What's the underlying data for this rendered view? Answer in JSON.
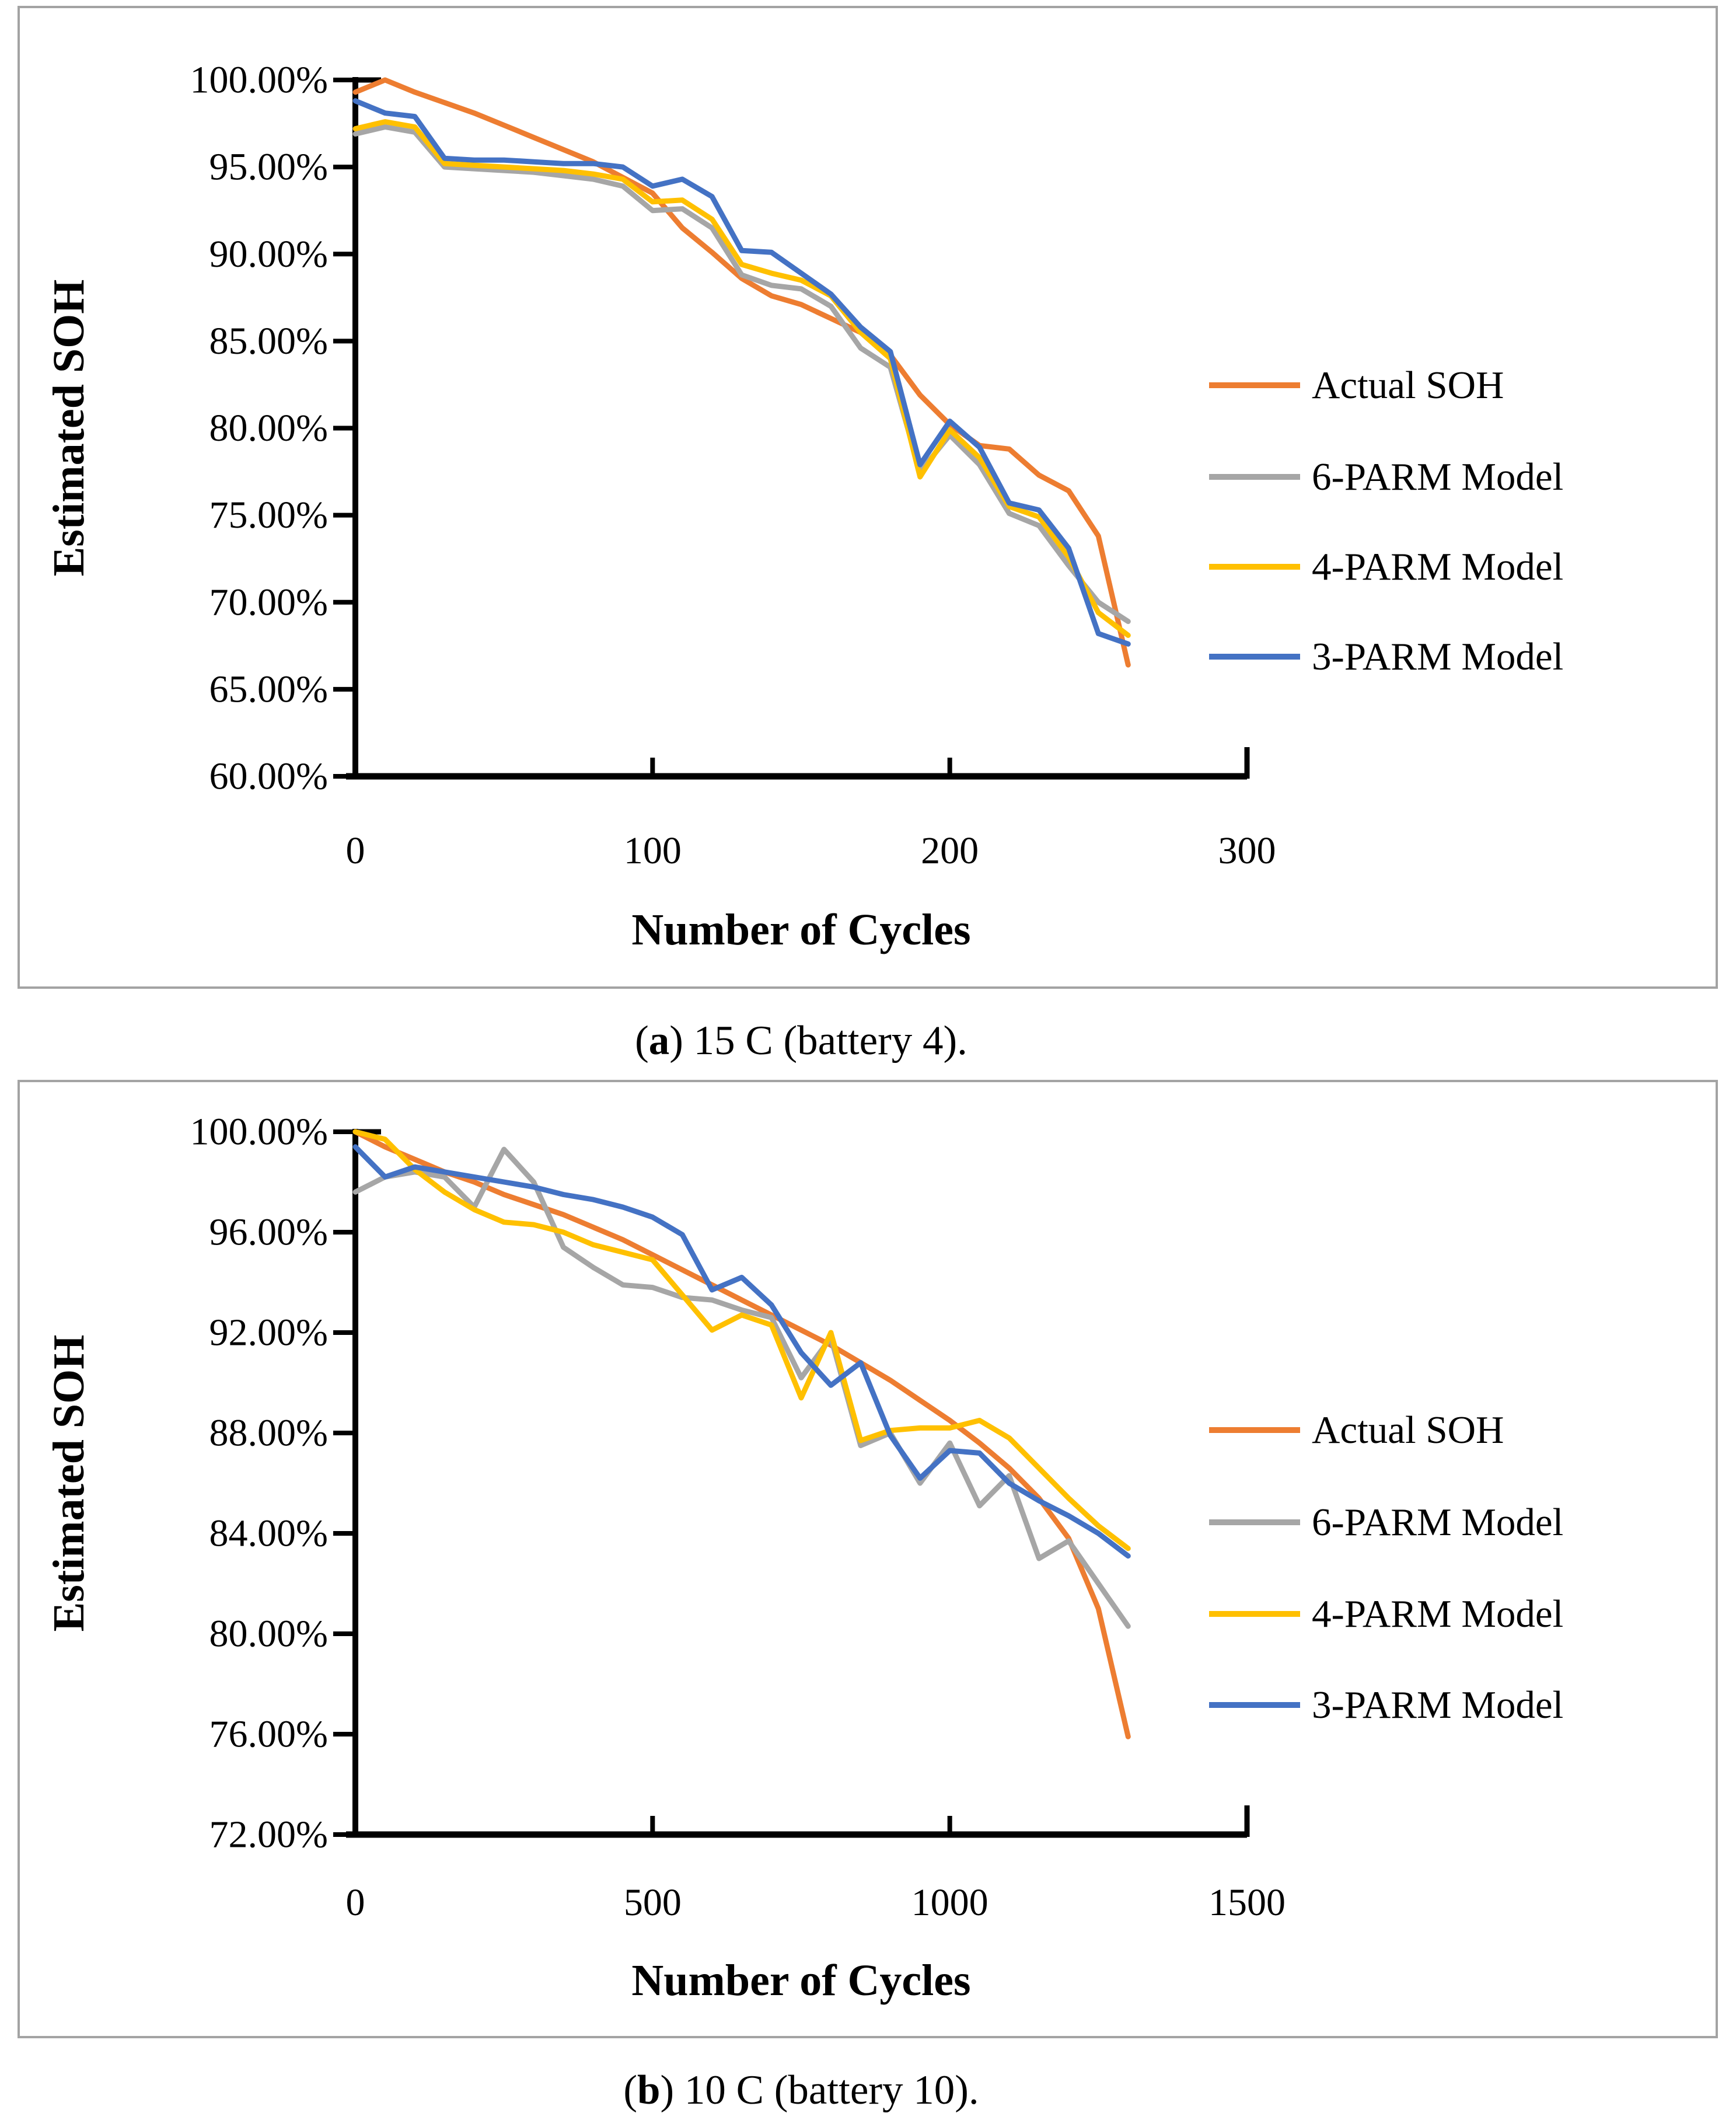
{
  "figure": {
    "background": "#ffffff",
    "border_color": "#a3a3a3"
  },
  "chart_data": [
    {
      "type": "line",
      "panel": "a",
      "caption_open": "(",
      "caption_letter": "a",
      "caption_rest": ") 15 C (battery 4).",
      "xlabel": "Number of Cycles",
      "ylabel": "Estimated SOH",
      "xlim": [
        0,
        300
      ],
      "ylim": [
        60,
        100
      ],
      "grid": false,
      "legend_position": "right",
      "x_ticks": [
        "0",
        "100",
        "200",
        "300"
      ],
      "x_tick_values": [
        0,
        100,
        200,
        300
      ],
      "y_ticks": [
        "100.00%",
        "95.00%",
        "90.00%",
        "85.00%",
        "80.00%",
        "75.00%",
        "70.00%",
        "65.00%",
        "60.00%"
      ],
      "y_tick_values": [
        100,
        95,
        90,
        85,
        80,
        75,
        70,
        65,
        60
      ],
      "x": [
        0,
        10,
        20,
        30,
        40,
        50,
        60,
        70,
        80,
        90,
        100,
        110,
        120,
        130,
        140,
        150,
        160,
        170,
        180,
        190,
        200,
        210,
        220,
        230,
        240,
        250,
        260
      ],
      "series": [
        {
          "name": "Actual SOH",
          "color": "#ED7D31",
          "values": [
            99.3,
            100.0,
            99.3,
            98.7,
            98.1,
            97.4,
            96.7,
            96.0,
            95.3,
            94.4,
            93.5,
            91.5,
            90.1,
            88.6,
            87.6,
            87.1,
            86.3,
            85.5,
            84.2,
            81.9,
            80.2,
            79.0,
            78.8,
            77.3,
            76.4,
            73.8,
            66.4
          ]
        },
        {
          "name": "6-PARM Model",
          "color": "#A6A6A6",
          "values": [
            96.9,
            97.3,
            97.0,
            95.0,
            94.9,
            94.8,
            94.7,
            94.5,
            94.3,
            93.9,
            92.5,
            92.6,
            91.5,
            88.8,
            88.2,
            88.0,
            87.0,
            84.6,
            83.5,
            77.5,
            79.6,
            77.9,
            75.1,
            74.4,
            72.1,
            70.0,
            68.9
          ]
        },
        {
          "name": "4-PARM Model",
          "color": "#FFC000",
          "values": [
            97.2,
            97.6,
            97.3,
            95.2,
            95.1,
            95.0,
            94.9,
            94.8,
            94.6,
            94.3,
            93.0,
            93.1,
            92.0,
            89.4,
            88.9,
            88.5,
            87.6,
            85.5,
            84.0,
            77.2,
            79.9,
            78.3,
            75.5,
            74.9,
            72.6,
            69.4,
            68.1
          ]
        },
        {
          "name": "3-PARM Model",
          "color": "#4472C4",
          "values": [
            98.8,
            98.1,
            97.9,
            95.5,
            95.4,
            95.4,
            95.3,
            95.2,
            95.2,
            95.0,
            93.9,
            94.3,
            93.3,
            90.2,
            90.1,
            88.9,
            87.7,
            85.8,
            84.4,
            77.9,
            80.4,
            78.9,
            75.7,
            75.3,
            73.1,
            68.2,
            67.6
          ]
        }
      ]
    },
    {
      "type": "line",
      "panel": "b",
      "caption_open": "(",
      "caption_letter": "b",
      "caption_rest": ") 10 C (battery 10).",
      "xlabel": "Number of Cycles",
      "ylabel": "Estimated SOH",
      "xlim": [
        0,
        1500
      ],
      "ylim": [
        72,
        100
      ],
      "grid": false,
      "legend_position": "right",
      "x_ticks": [
        "0",
        "500",
        "1000",
        "1500"
      ],
      "x_tick_values": [
        0,
        500,
        1000,
        1500
      ],
      "y_ticks": [
        "100.00%",
        "96.00%",
        "92.00%",
        "88.00%",
        "84.00%",
        "80.00%",
        "76.00%",
        "72.00%"
      ],
      "y_tick_values": [
        100,
        96,
        92,
        88,
        84,
        80,
        76,
        72
      ],
      "x": [
        0,
        50,
        100,
        150,
        200,
        250,
        300,
        350,
        400,
        450,
        500,
        550,
        600,
        650,
        700,
        750,
        800,
        850,
        900,
        950,
        1000,
        1050,
        1100,
        1150,
        1200,
        1250,
        1300
      ],
      "series": [
        {
          "name": "Actual SOH",
          "color": "#ED7D31",
          "values": [
            100.0,
            99.4,
            98.9,
            98.4,
            98.0,
            97.5,
            97.1,
            96.7,
            96.2,
            95.7,
            95.1,
            94.5,
            93.9,
            93.3,
            92.7,
            92.1,
            91.5,
            90.8,
            90.1,
            89.3,
            88.5,
            87.6,
            86.6,
            85.4,
            83.8,
            81.0,
            75.9
          ]
        },
        {
          "name": "6-PARM Model",
          "color": "#A6A6A6",
          "values": [
            97.6,
            98.2,
            98.4,
            98.2,
            97.0,
            99.3,
            98.0,
            95.4,
            94.6,
            93.9,
            93.8,
            93.4,
            93.3,
            92.9,
            92.6,
            90.2,
            91.8,
            87.5,
            88.0,
            86.0,
            87.6,
            85.1,
            86.3,
            83.0,
            83.7,
            82.0,
            80.3
          ]
        },
        {
          "name": "4-PARM Model",
          "color": "#FFC000",
          "values": [
            100.0,
            99.7,
            98.5,
            97.6,
            96.9,
            96.4,
            96.3,
            96.0,
            95.5,
            95.2,
            94.9,
            93.5,
            92.1,
            92.7,
            92.3,
            89.4,
            92.0,
            87.7,
            88.1,
            88.2,
            88.2,
            88.5,
            87.8,
            86.6,
            85.4,
            84.3,
            83.4
          ]
        },
        {
          "name": "3-PARM Model",
          "color": "#4472C4",
          "values": [
            99.4,
            98.2,
            98.6,
            98.4,
            98.2,
            98.0,
            97.8,
            97.5,
            97.3,
            97.0,
            96.6,
            95.9,
            93.7,
            94.2,
            93.1,
            91.2,
            89.9,
            90.8,
            87.9,
            86.2,
            87.3,
            87.2,
            86.0,
            85.3,
            84.7,
            84.0,
            83.1
          ]
        }
      ]
    }
  ],
  "legend": {
    "items": [
      "Actual SOH",
      "6-PARM Model",
      "4-PARM Model",
      "3-PARM Model"
    ],
    "colors": [
      "#ED7D31",
      "#A6A6A6",
      "#FFC000",
      "#4472C4"
    ]
  }
}
